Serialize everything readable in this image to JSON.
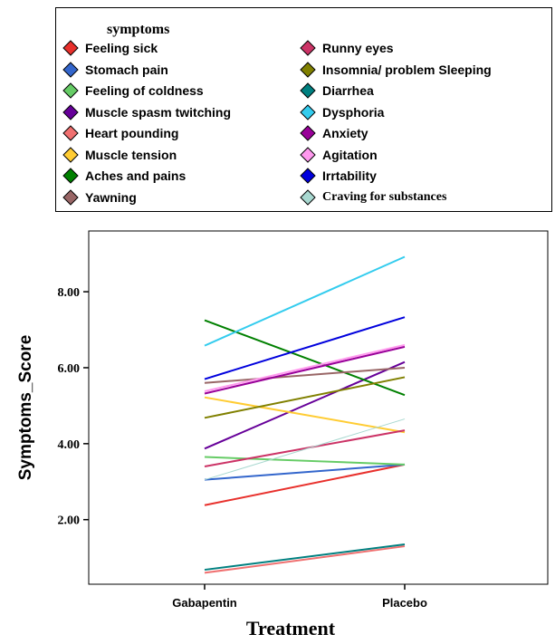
{
  "legend": {
    "title": "symptoms",
    "items": [
      {
        "label": "Feeling sick",
        "color": "#e8302c",
        "font": "sans"
      },
      {
        "label": "Stomach pain",
        "color": "#3366cc",
        "font": "sans"
      },
      {
        "label": "Feeling of coldness",
        "color": "#66cc66",
        "font": "sans"
      },
      {
        "label": "Muscle spasm twitching",
        "color": "#660099",
        "font": "sans"
      },
      {
        "label": "Heart pounding",
        "color": "#f07070",
        "font": "sans"
      },
      {
        "label": "Muscle tension",
        "color": "#ffcc33",
        "font": "sans"
      },
      {
        "label": "Aches and pains",
        "color": "#008000",
        "font": "sans"
      },
      {
        "label": "Yawning",
        "color": "#996666",
        "font": "sans"
      },
      {
        "label": "Runny eyes",
        "color": "#cc3366",
        "font": "sans"
      },
      {
        "label": "Insomnia/ problem Sleeping",
        "color": "#808000",
        "font": "sans"
      },
      {
        "label": "Diarrhea",
        "color": "#008080",
        "font": "sans"
      },
      {
        "label": "Dysphoria",
        "color": "#33ccee",
        "font": "sans"
      },
      {
        "label": "Anxiety",
        "color": "#990099",
        "font": "sans"
      },
      {
        "label": "Agitation",
        "color": "#ff99ee",
        "font": "sans"
      },
      {
        "label": "Irrtability",
        "color": "#0000dd",
        "font": "sans"
      },
      {
        "label": "Craving for substances",
        "color": "#a8d8d0",
        "font": "serif"
      }
    ]
  },
  "chart_data": {
    "type": "line",
    "xlabel": "Treatment",
    "ylabel": "Symptoms_Score",
    "categories": [
      "Gabapentin",
      "Placebo"
    ],
    "yticks": [
      "2.00",
      "4.00",
      "6.00",
      "8.00"
    ],
    "ytick_values": [
      2,
      4,
      6,
      8
    ],
    "ylim": [
      0.3,
      9.6
    ],
    "grid": false,
    "series": [
      {
        "name": "Feeling sick",
        "color": "#e8302c",
        "values": [
          2.38,
          3.45
        ]
      },
      {
        "name": "Stomach pain",
        "color": "#3366cc",
        "values": [
          3.05,
          3.45
        ]
      },
      {
        "name": "Feeling of coldness",
        "color": "#66cc66",
        "values": [
          3.65,
          3.45
        ]
      },
      {
        "name": "Muscle spasm twitching",
        "color": "#660099",
        "values": [
          3.87,
          6.15
        ]
      },
      {
        "name": "Heart pounding",
        "color": "#f07070",
        "values": [
          0.6,
          1.3
        ]
      },
      {
        "name": "Muscle tension",
        "color": "#ffcc33",
        "values": [
          5.22,
          4.3
        ]
      },
      {
        "name": "Aches and pains",
        "color": "#008000",
        "values": [
          7.25,
          5.28
        ]
      },
      {
        "name": "Yawning",
        "color": "#996666",
        "values": [
          5.6,
          6.0
        ]
      },
      {
        "name": "Runny eyes",
        "color": "#cc3366",
        "values": [
          3.4,
          4.35
        ]
      },
      {
        "name": "Insomnia/ problem Sleeping",
        "color": "#808000",
        "values": [
          4.68,
          5.75
        ]
      },
      {
        "name": "Diarrhea",
        "color": "#008080",
        "values": [
          0.68,
          1.35
        ]
      },
      {
        "name": "Dysphoria",
        "color": "#33ccee",
        "values": [
          6.58,
          8.92
        ]
      },
      {
        "name": "Anxiety",
        "color": "#990099",
        "values": [
          5.32,
          6.55
        ]
      },
      {
        "name": "Agitation",
        "color": "#ff99ee",
        "values": [
          5.38,
          6.6
        ]
      },
      {
        "name": "Irrtability",
        "color": "#0000dd",
        "values": [
          5.7,
          7.33
        ]
      },
      {
        "name": "Craving for substances",
        "color": "#a8d8d0",
        "values": [
          3.05,
          4.65
        ]
      }
    ]
  }
}
